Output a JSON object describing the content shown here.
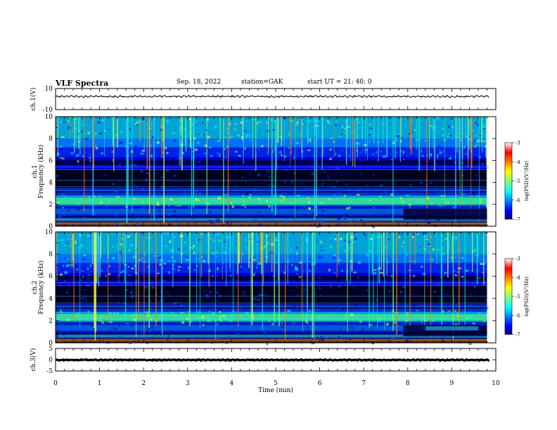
{
  "header": {
    "title": "VLF Spectra",
    "date": "Sep. 18, 2022",
    "station": "station=GAK",
    "start": "start  UT  =   21: 40: 0"
  },
  "chart_data": [
    {
      "type": "line",
      "name": "waveform-ch1",
      "ylabel": "ch.1(V)",
      "ylim": [
        -10,
        10
      ],
      "yticks": [
        "10",
        "-10"
      ],
      "xlim": [
        0,
        10
      ],
      "approx_level": 2.5,
      "approx_amplitude": 1.2
    },
    {
      "type": "heatmap",
      "name": "spectrogram-ch1",
      "ylabel": "ch.1\nFrequency  (kHz)",
      "ylim": [
        0,
        10
      ],
      "yticks": [
        "0",
        "2",
        "4",
        "6",
        "8",
        "10"
      ],
      "xlim": [
        0,
        9.8
      ],
      "colorbar": {
        "label": "log(PSD)(V²/Hz)",
        "ticks": [
          "-3",
          "-4",
          "-5",
          "-6",
          "-7"
        ],
        "range": [
          -7,
          -3
        ]
      }
    },
    {
      "type": "heatmap",
      "name": "spectrogram-ch2",
      "ylabel": "ch.2\nFrequency  (kHz)",
      "ylim": [
        0,
        10
      ],
      "yticks": [
        "0",
        "2",
        "4",
        "6",
        "8",
        "10"
      ],
      "xlim": [
        0,
        9.8
      ],
      "colorbar": {
        "label": "log(PSD)(V²/Hz)",
        "ticks": [
          "-3",
          "-4",
          "-5",
          "-6",
          "-7"
        ],
        "range": [
          -7,
          -3
        ]
      }
    },
    {
      "type": "line",
      "name": "waveform-ch3",
      "ylabel": "ch.3(V)",
      "ylim": [
        -5,
        5
      ],
      "yticks": [
        "5",
        "0",
        "-5"
      ],
      "xlim": [
        0,
        10
      ],
      "approx_level": -0.1,
      "approx_amplitude": 0.3
    }
  ],
  "xaxis": {
    "label": "Time  (min)",
    "ticks": [
      "0",
      "1",
      "2",
      "3",
      "4",
      "5",
      "6",
      "7",
      "8",
      "9",
      "10"
    ],
    "range": [
      0,
      10
    ]
  }
}
